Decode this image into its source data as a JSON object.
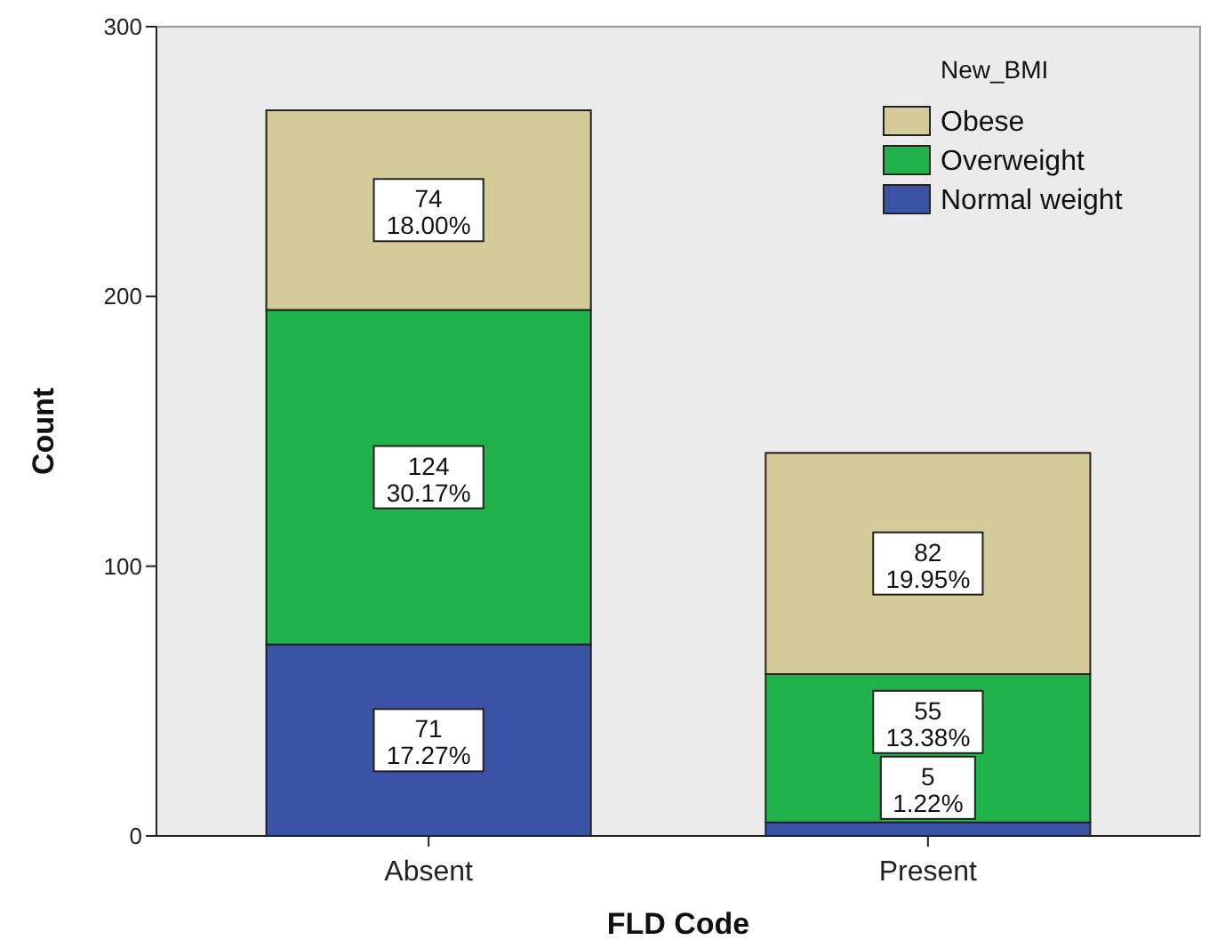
{
  "chart_data": {
    "type": "bar",
    "stacked": true,
    "xlabel": "FLD Code",
    "ylabel": "Count",
    "legend_title": "New_BMI",
    "legend": "top right",
    "grid": false,
    "categories": [
      "Absent",
      "Present"
    ],
    "ylim": [
      0,
      300
    ],
    "yticks": [
      0,
      100,
      200,
      300
    ],
    "series": [
      {
        "name": "Normal weight",
        "color": "#3a53a4",
        "values": [
          71,
          5
        ],
        "value_labels": [
          "71\n17.27%",
          "5\n1.22%"
        ]
      },
      {
        "name": "Overweight",
        "color": "#21b24b",
        "values": [
          124,
          55
        ],
        "value_labels": [
          "124\n30.17%",
          "55\n13.38%"
        ]
      },
      {
        "name": "Obese",
        "color": "#d3cc98",
        "values": [
          74,
          82
        ],
        "value_labels": [
          "74\n18.00%",
          "82\n19.95%"
        ]
      }
    ]
  }
}
